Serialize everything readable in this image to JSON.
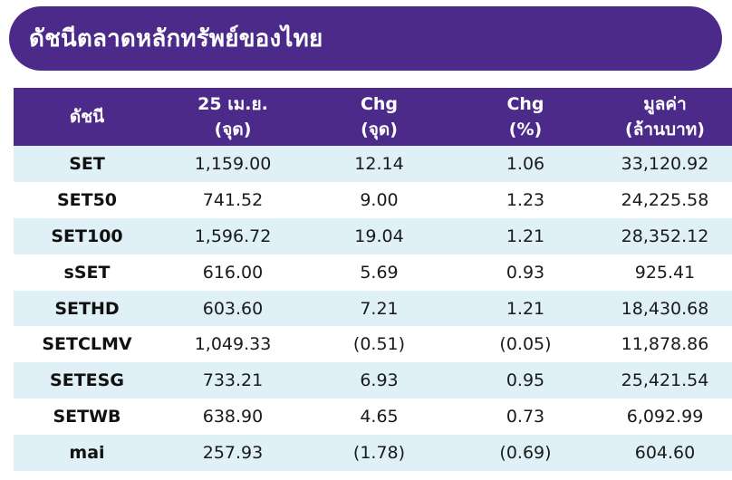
{
  "title": "ดัชนีตลาดหลักทรัพย์ของไทย",
  "columns": [
    {
      "line1": "ดัชนี",
      "line2": ""
    },
    {
      "line1": "25 เม.ย.",
      "line2": "(จุด)"
    },
    {
      "line1": "Chg",
      "line2": "(จุด)"
    },
    {
      "line1": "Chg",
      "line2": "(%)"
    },
    {
      "line1": "มูลค่า",
      "line2": "(ล้านบาท)"
    }
  ],
  "rows": [
    {
      "name": "SET",
      "close": "1,159.00",
      "chg_pt": "12.14",
      "chg_pct": "1.06",
      "value": "33,120.92"
    },
    {
      "name": "SET50",
      "close": "741.52",
      "chg_pt": "9.00",
      "chg_pct": "1.23",
      "value": "24,225.58"
    },
    {
      "name": "SET100",
      "close": "1,596.72",
      "chg_pt": "19.04",
      "chg_pct": "1.21",
      "value": "28,352.12"
    },
    {
      "name": "sSET",
      "close": "616.00",
      "chg_pt": "5.69",
      "chg_pct": "0.93",
      "value": "925.41"
    },
    {
      "name": "SETHD",
      "close": "603.60",
      "chg_pt": "7.21",
      "chg_pct": "1.21",
      "value": "18,430.68"
    },
    {
      "name": "SETCLMV",
      "close": "1,049.33",
      "chg_pt": "(0.51)",
      "chg_pct": "(0.05)",
      "value": "11,878.86"
    },
    {
      "name": "SETESG",
      "close": "733.21",
      "chg_pt": "6.93",
      "chg_pct": "0.95",
      "value": "25,421.54"
    },
    {
      "name": "SETWB",
      "close": "638.90",
      "chg_pt": "4.65",
      "chg_pct": "0.73",
      "value": "6,092.99"
    },
    {
      "name": "mai",
      "close": "257.93",
      "chg_pt": "(1.78)",
      "chg_pct": "(0.69)",
      "value": "604.60"
    }
  ],
  "colors": {
    "header_bg": "#4b2a8a",
    "stripe_bg": "#dff1f6",
    "text": "#1a1a1a"
  }
}
